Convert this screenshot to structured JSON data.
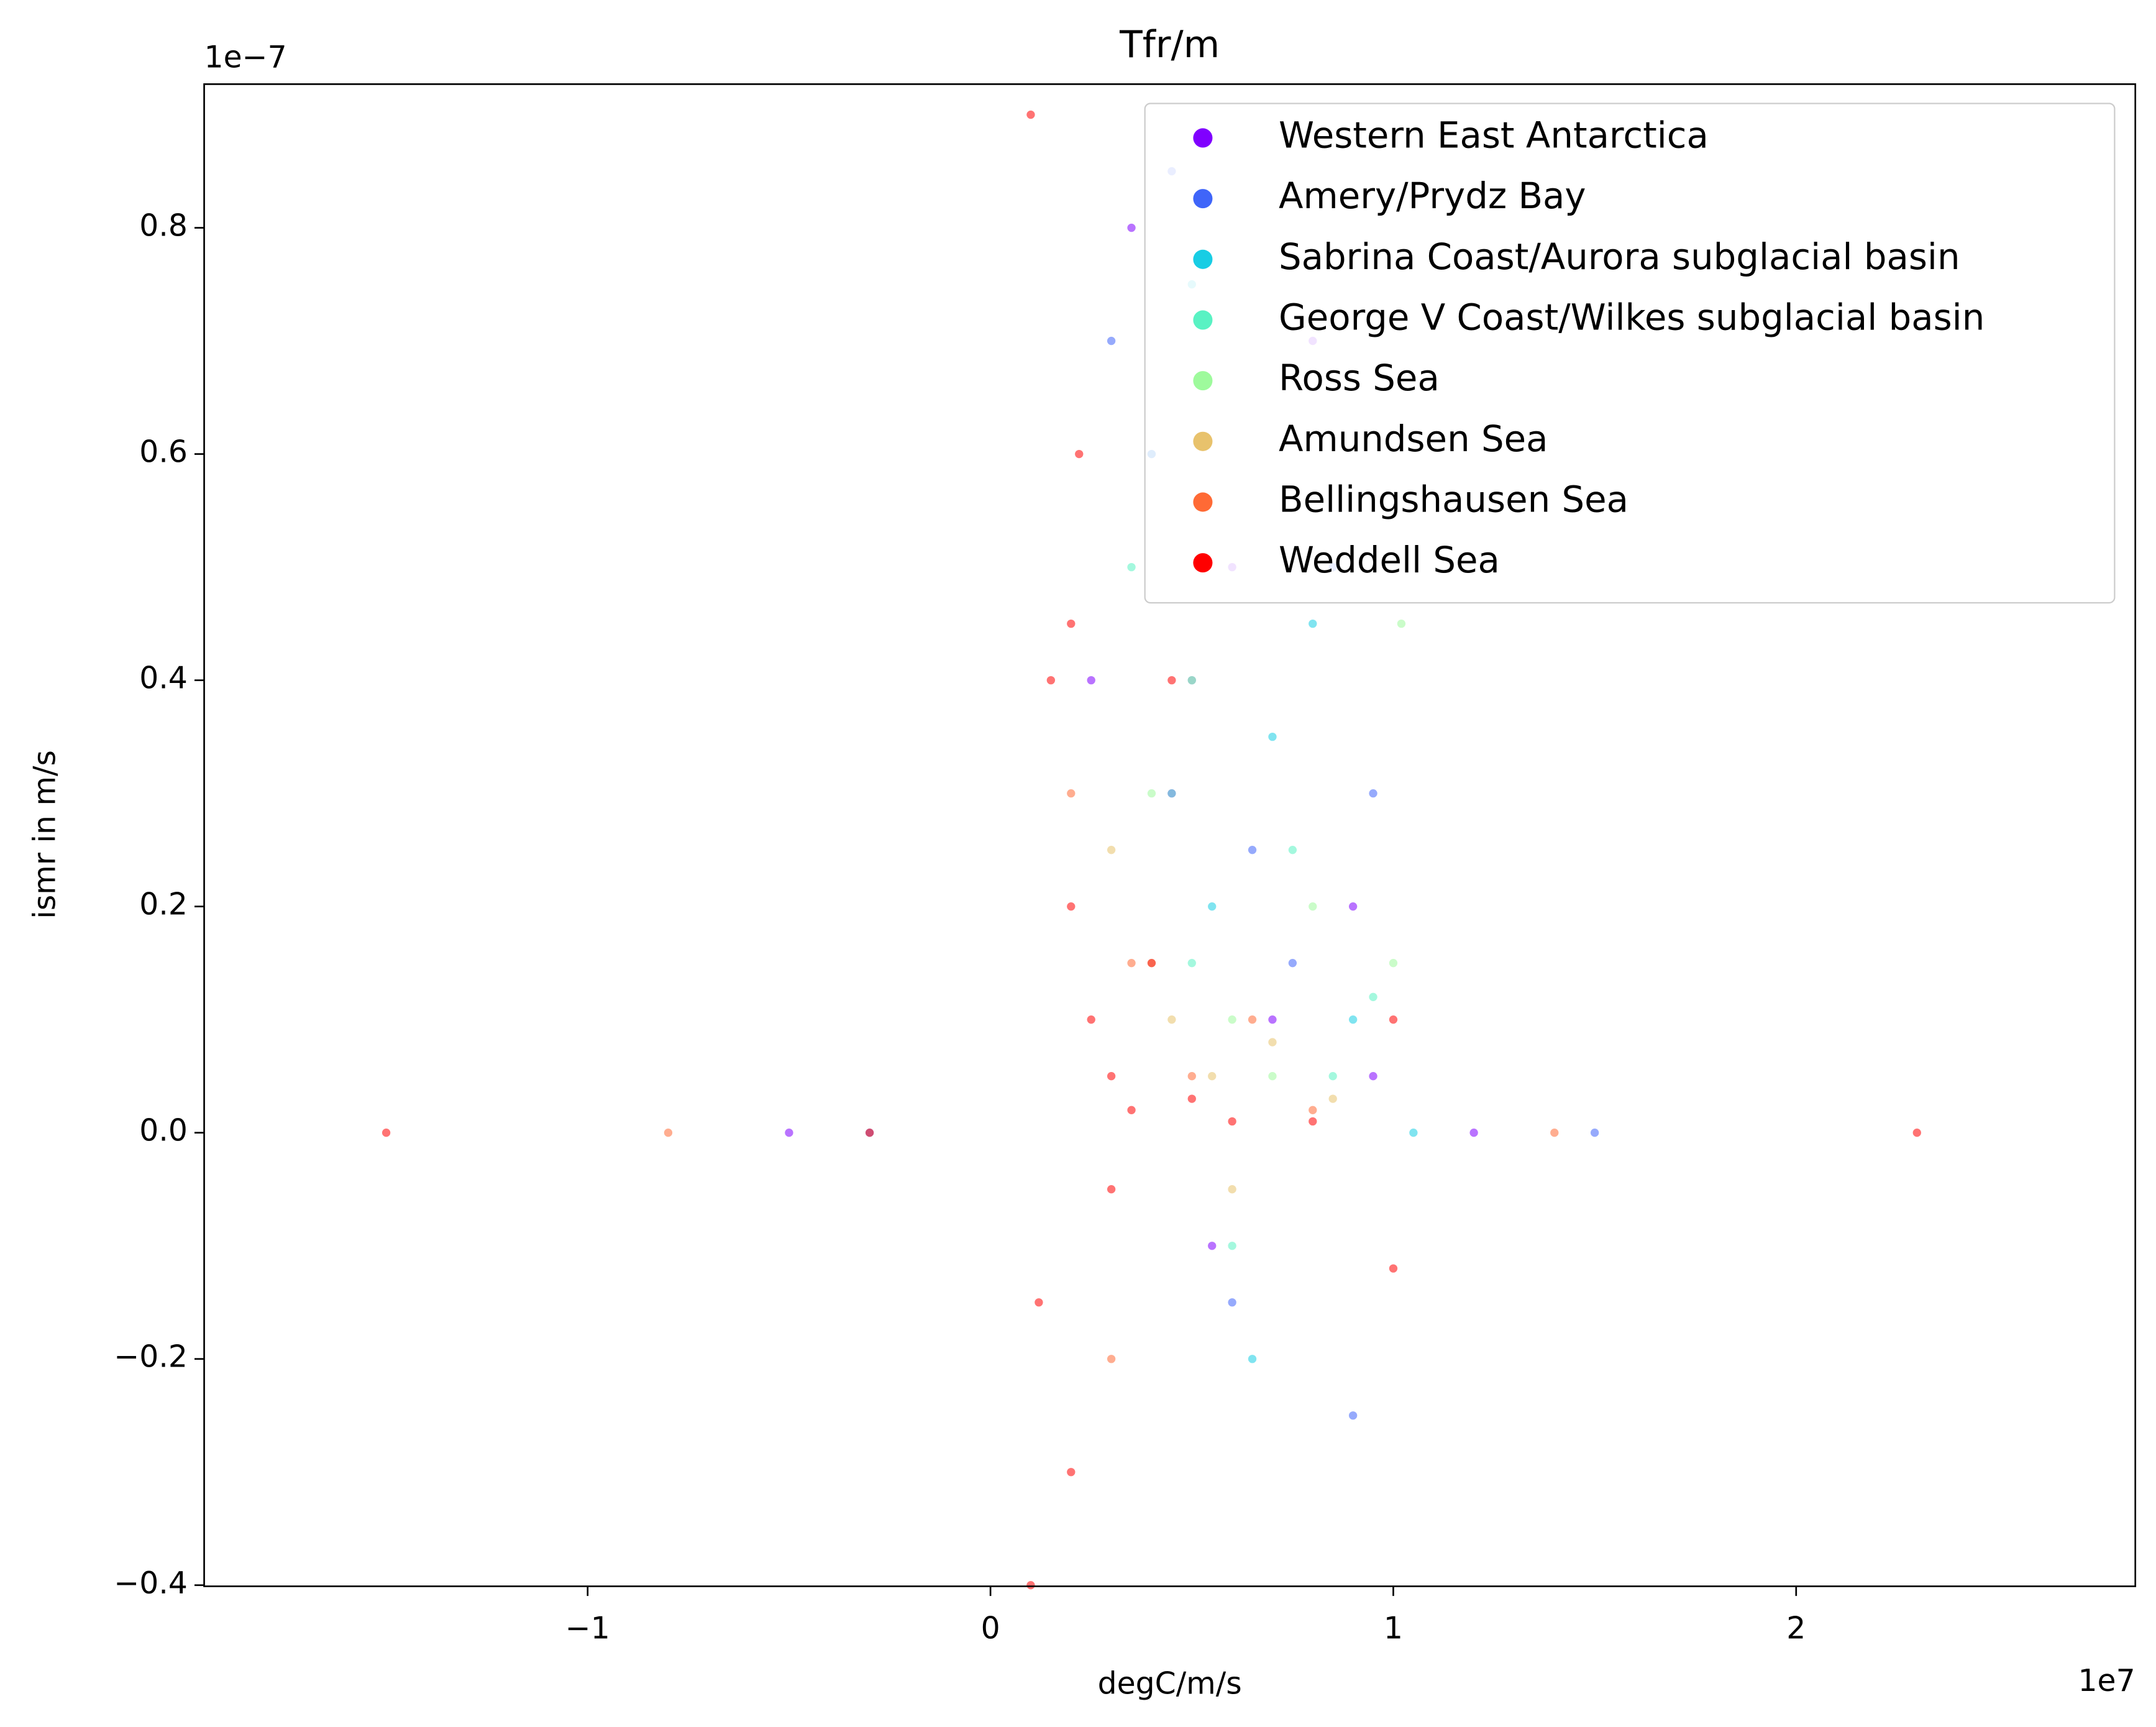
{
  "chart_data": {
    "type": "scatter",
    "title": "Tfr/m",
    "x_label": "degC/m/s",
    "y_label": "ismr in m/s",
    "x_offset_label": "1e7",
    "y_offset_label": "1e−7",
    "xlim": [
      -1.952,
      2.842
    ],
    "ylim": [
      -0.401,
      0.927
    ],
    "xticks": [
      {
        "value": -1,
        "label": "−1"
      },
      0,
      1,
      2
    ],
    "yticks": [
      {
        "value": -0.4,
        "label": "−0.4"
      },
      {
        "value": -0.2,
        "label": "−0.2"
      },
      {
        "value": 0,
        "label": "0.0"
      },
      0.2,
      0.4,
      0.6,
      0.8
    ],
    "legend": "upper right",
    "series": [
      {
        "name": "Western East Antarctica",
        "color": "#8000ff",
        "x": [
          0.35,
          0.45,
          0.6,
          0.8,
          0.7,
          0.9,
          0.55,
          0.4,
          0.95,
          1.2,
          -0.5,
          0.25
        ],
        "values": [
          0.8,
          0.3,
          0.5,
          0.7,
          0.1,
          0.2,
          -0.1,
          0.6,
          0.05,
          0.0,
          0.0,
          0.4
        ]
      },
      {
        "name": "Amery/Prydz Bay",
        "color": "#3f65f9",
        "x": [
          0.3,
          0.5,
          0.65,
          0.85,
          0.75,
          0.95,
          0.6,
          0.45,
          1.5,
          -0.3,
          0.9
        ],
        "values": [
          0.7,
          0.4,
          0.25,
          0.5,
          0.15,
          0.3,
          -0.15,
          0.85,
          0.0,
          0.0,
          -0.25
        ]
      },
      {
        "name": "Sabrina Coast/Aurora subglacial basin",
        "color": "#18cde4",
        "x": [
          0.4,
          0.55,
          0.7,
          0.9,
          0.65,
          0.5,
          1.05,
          0.8
        ],
        "values": [
          0.6,
          0.2,
          0.35,
          0.1,
          -0.2,
          0.75,
          0.0,
          0.45
        ]
      },
      {
        "name": "George V Coast/Wilkes subglacial basin",
        "color": "#59f2c3",
        "x": [
          0.35,
          0.5,
          0.75,
          0.95,
          0.6,
          0.85,
          0.45
        ],
        "values": [
          0.5,
          0.15,
          0.25,
          0.12,
          -0.1,
          0.05,
          0.3
        ]
      },
      {
        "name": "Ross Sea",
        "color": "#9efa9c",
        "x": [
          0.4,
          0.6,
          0.8,
          1.0,
          0.7,
          0.5,
          1.02
        ],
        "values": [
          0.3,
          0.1,
          0.2,
          0.15,
          0.05,
          0.4,
          0.45
        ]
      },
      {
        "name": "Amundsen Sea",
        "color": "#e8c26c",
        "x": [
          0.3,
          0.45,
          0.55,
          0.7,
          0.85,
          0.6,
          0.4
        ],
        "values": [
          0.25,
          0.1,
          0.05,
          0.08,
          0.03,
          -0.05,
          0.15
        ]
      },
      {
        "name": "Bellingshausen Sea",
        "color": "#ff6a35",
        "x": [
          0.2,
          0.35,
          0.5,
          0.65,
          0.8,
          -0.8,
          1.4,
          0.3
        ],
        "values": [
          0.3,
          0.15,
          0.05,
          0.1,
          0.02,
          0.0,
          0.0,
          -0.2
        ]
      },
      {
        "name": "Weddell Sea",
        "color": "#ff0000",
        "x": [
          0.1,
          0.15,
          0.2,
          0.2,
          0.2,
          0.25,
          0.3,
          0.35,
          0.4,
          0.5,
          0.6,
          0.8,
          1.0,
          1.0,
          0.12,
          0.22,
          0.3,
          -0.3,
          -1.5,
          2.3,
          0.45,
          0.1
        ],
        "values": [
          0.9,
          0.4,
          0.45,
          0.2,
          -0.3,
          0.1,
          0.05,
          0.02,
          0.15,
          0.03,
          0.01,
          0.01,
          0.1,
          -0.12,
          -0.15,
          0.6,
          -0.05,
          0.0,
          0.0,
          0.0,
          0.4,
          -0.4
        ]
      }
    ]
  }
}
